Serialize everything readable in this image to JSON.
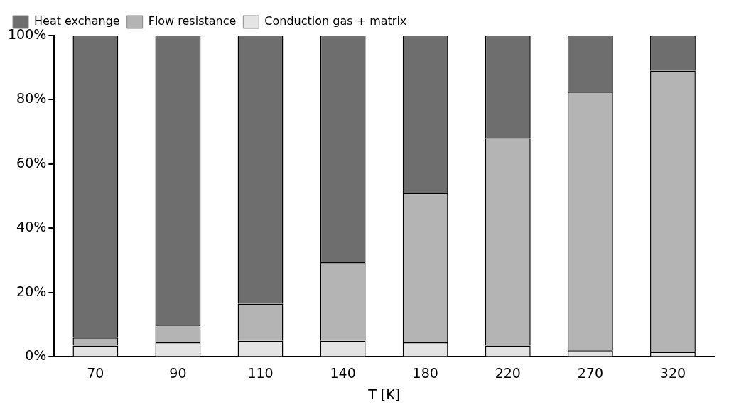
{
  "chart_data": {
    "type": "bar",
    "stacked": true,
    "xlabel": "T [K]",
    "categories": [
      "70",
      "90",
      "110",
      "140",
      "180",
      "220",
      "270",
      "320"
    ],
    "series": [
      {
        "name": "Conduction gas + matrix",
        "color": "#e4e4e4",
        "values": [
          3.5,
          4.5,
          5,
          5,
          4.5,
          3.5,
          2,
          1.5
        ]
      },
      {
        "name": "Flow resistance",
        "color": "#b4b4b4",
        "values": [
          2.5,
          5.5,
          11.5,
          24.5,
          46.5,
          64.5,
          80.5,
          87.5
        ]
      },
      {
        "name": "Heat exchange",
        "color": "#6e6e6e",
        "values": [
          94,
          90,
          83.5,
          70.5,
          49,
          32,
          17.5,
          11
        ]
      }
    ],
    "ylim": [
      0,
      100
    ],
    "yticks": [
      {
        "value": 0,
        "label": "0%"
      },
      {
        "value": 20,
        "label": "20%"
      },
      {
        "value": 40,
        "label": "40%"
      },
      {
        "value": 60,
        "label": "60%"
      },
      {
        "value": 80,
        "label": "80%"
      },
      {
        "value": 100,
        "label": "100%"
      }
    ],
    "grid": false,
    "legend": "top left"
  }
}
